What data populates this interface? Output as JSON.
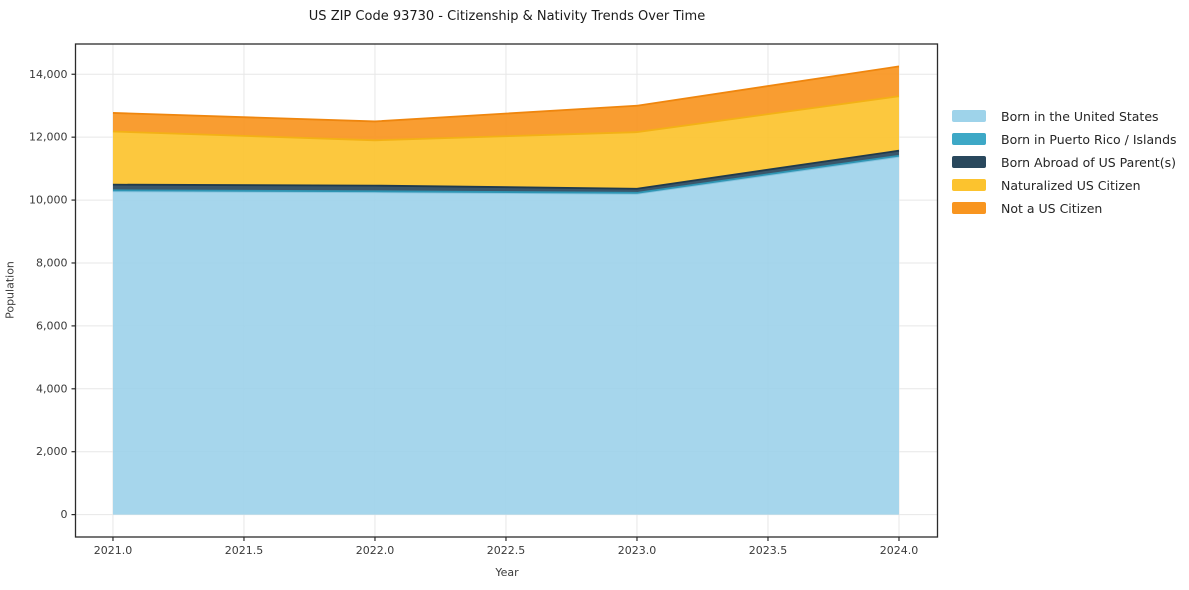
{
  "chart_data": {
    "type": "area",
    "stacked": true,
    "title": "US ZIP Code 93730 - Citizenship & Nativity Trends Over Time",
    "xlabel": "Year",
    "ylabel": "Population",
    "x": [
      2021,
      2022,
      2023,
      2024
    ],
    "series": [
      {
        "name": "Born in the United States",
        "color": "#9ed3ea",
        "edge": "#86c3de",
        "values": [
          10280,
          10250,
          10200,
          11380
        ]
      },
      {
        "name": "Born in Puerto Rico / Islands",
        "color": "#3da8c6",
        "edge": "#2e95b3",
        "values": [
          30,
          30,
          30,
          30
        ]
      },
      {
        "name": "Born Abroad of US Parent(s)",
        "color": "#29485d",
        "edge": "#1f3a4d",
        "values": [
          180,
          180,
          130,
          160
        ]
      },
      {
        "name": "Naturalized US Citizen",
        "color": "#fcc32e",
        "edge": "#f3b115",
        "values": [
          1690,
          1440,
          1800,
          1730
        ]
      },
      {
        "name": "Not a US Citizen",
        "color": "#f8951f",
        "edge": "#ef860e",
        "values": [
          590,
          600,
          840,
          950
        ]
      }
    ],
    "totals": [
      12770,
      12500,
      13000,
      14250
    ],
    "xlim": [
      2020.857,
      2024.147
    ],
    "ylim": [
      -712,
      14962
    ],
    "x_ticks": {
      "values": [
        2021.0,
        2021.5,
        2022.0,
        2022.5,
        2023.0,
        2023.5,
        2024.0
      ],
      "labels": [
        "2021.0",
        "2021.5",
        "2022.0",
        "2022.5",
        "2023.0",
        "2023.5",
        "2024.0"
      ]
    },
    "y_ticks": {
      "values": [
        0,
        2000,
        4000,
        6000,
        8000,
        10000,
        12000,
        14000
      ],
      "labels": [
        "0",
        "2,000",
        "4,000",
        "6,000",
        "8,000",
        "10,000",
        "12,000",
        "14,000"
      ]
    },
    "grid": true,
    "legend_position": "right"
  },
  "style_colors": {
    "grid": "#e7e7e7",
    "spine": "#2b2b2b",
    "tick": "#3a3a3a",
    "background": "#ffffff"
  }
}
